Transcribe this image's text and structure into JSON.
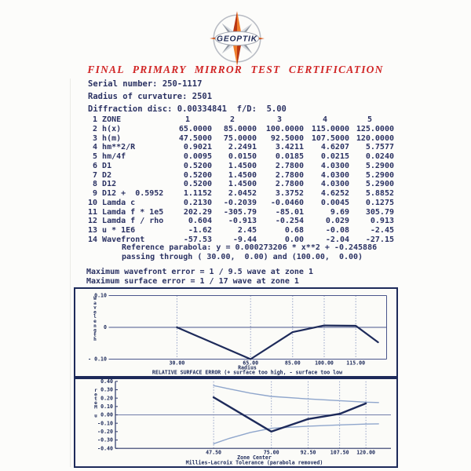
{
  "logo": {
    "text": "GEOPTIK"
  },
  "title": "FINAL PRIMARY MIRROR TEST CERTIFICATION",
  "info": [
    {
      "label": "Serial number:",
      "value": "250-1117"
    },
    {
      "label": "Radius of curvature:",
      "value": "2501"
    },
    {
      "label": "Diffraction disc:",
      "value": "0.00334841",
      "label2": "f/D:",
      "value2": "5.00"
    }
  ],
  "table": {
    "rows": [
      {
        "label": " 1 ZONE",
        "values": [
          "1",
          "2",
          "3",
          "4",
          "5"
        ],
        "header": true
      },
      {
        "label": " 2 h(x)",
        "values": [
          "65.0000",
          "85.0000",
          "100.0000",
          "115.0000",
          "125.0000"
        ]
      },
      {
        "label": " 3 h(m)",
        "values": [
          "47.5000",
          "75.0000",
          "92.5000",
          "107.5000",
          "120.0000"
        ]
      },
      {
        "label": " 4 hm**2/R",
        "values": [
          "0.9021",
          "2.2491",
          "3.4211",
          "4.6207",
          "5.7577"
        ]
      },
      {
        "label": " 5 hm/4f",
        "values": [
          "0.0095",
          "0.0150",
          "0.0185",
          "0.0215",
          "0.0240"
        ]
      },
      {
        "label": " 6 D1",
        "values": [
          "0.5200",
          "1.4500",
          "2.7800",
          "4.0300",
          "5.2900"
        ]
      },
      {
        "label": " 7 D2",
        "values": [
          "0.5200",
          "1.4500",
          "2.7800",
          "4.0300",
          "5.2900"
        ]
      },
      {
        "label": " 8 D12",
        "values": [
          "0.5200",
          "1.4500",
          "2.7800",
          "4.0300",
          "5.2900"
        ]
      },
      {
        "label": " 9 D12 +  0.5952",
        "values": [
          "1.1152",
          "2.0452",
          "3.3752",
          "4.6252",
          "5.8852"
        ]
      },
      {
        "label": "10 Lamda c",
        "values": [
          "0.2130",
          "-0.2039",
          "-0.0460",
          "0.0045",
          "0.1275"
        ]
      },
      {
        "label": "11 Lamda f * 1e5",
        "values": [
          "202.29",
          "-305.79",
          "-85.01",
          "9.69",
          "305.79"
        ]
      },
      {
        "label": "12 Lamda f / rho",
        "values": [
          "0.604",
          "-0.913",
          "-0.254",
          "0.029",
          "0.913"
        ]
      },
      {
        "label": "13 u * 1E6",
        "values": [
          "-1.62",
          "2.45",
          "0.68",
          "-0.08",
          "-2.45"
        ]
      },
      {
        "label": "14 Wavefront",
        "values": [
          "-57.53",
          "-9.44",
          "0.00",
          "-2.04",
          "-27.15"
        ]
      }
    ]
  },
  "notes": {
    "reference_line1": "Reference parabola: y = 0.000273206 * x**2 + -0.245886",
    "reference_line2": "passing through ( 30.00,  0.00) and (100.00,  0.00)",
    "max_wavefront": "Maximum wavefront error = 1 / 9.5 wave at zone 1",
    "max_surface": "Maximum surface error = 1 / 17 wave at zone 1"
  },
  "chart_data": [
    {
      "type": "line",
      "xlabel": "Radius",
      "ylabel": "Wavelength",
      "caption": "RELATIVE SURFACE ERROR (+ surface too high, - surface too low",
      "xticks": [
        "30.00",
        "65.00",
        "85.00",
        "100.00",
        "115.00"
      ],
      "xtick_values": [
        30,
        65,
        85,
        100,
        115
      ],
      "ytick_labels": [
        "0.10",
        "0",
        "- 0.10"
      ],
      "ytick_values": [
        0.1,
        0,
        -0.1
      ],
      "ylim": [
        -0.1,
        0.1
      ],
      "xlim": [
        0,
        133
      ],
      "grid": "vertical-dotted",
      "legend": "none",
      "series": [
        {
          "name": "relative-surface-error",
          "x": [
            30,
            65,
            85,
            100,
            115,
            125.6
          ],
          "y": [
            0.0,
            -0.1,
            -0.015,
            0.006,
            0.005,
            -0.047
          ],
          "color": "#1d2a5a",
          "width": 2.2
        }
      ]
    },
    {
      "type": "line",
      "xlabel": "Zone Center",
      "ylabel": "u Meter",
      "caption": "Millies-Lacroix Tolerance (parabola removed)",
      "xticks": [
        "47.50",
        "75.00",
        "92.50",
        "107.50",
        "120.00"
      ],
      "xtick_values": [
        47.5,
        75,
        92.5,
        107.5,
        120
      ],
      "ytick_labels": [
        "0.40",
        "0.30",
        "0.20",
        "0.10",
        "0.00",
        "-0.10",
        "-0.20",
        "-0.30",
        "-0.40"
      ],
      "ytick_values": [
        0.4,
        0.3,
        0.2,
        0.1,
        0.0,
        -0.1,
        -0.2,
        -0.3,
        -0.4
      ],
      "ylim": [
        -0.4,
        0.4
      ],
      "xlim": [
        0,
        133
      ],
      "grid": "vertical-dotted",
      "legend": "none",
      "series": [
        {
          "name": "tolerance-upper",
          "x": [
            47.5,
            55,
            65,
            75,
            92.5,
            107.5,
            120,
            126
          ],
          "y": [
            0.35,
            0.31,
            0.26,
            0.22,
            0.19,
            0.17,
            0.152,
            0.147
          ],
          "color": "#8fa6cc",
          "width": 1.4
        },
        {
          "name": "tolerance-lower",
          "x": [
            47.5,
            55,
            65,
            75,
            92.5,
            107.5,
            120,
            126
          ],
          "y": [
            -0.345,
            -0.28,
            -0.21,
            -0.16,
            -0.135,
            -0.12,
            -0.11,
            -0.107
          ],
          "color": "#8fa6cc",
          "width": 1.4
        },
        {
          "name": "measured-error",
          "x": [
            47.5,
            75,
            92.5,
            107.5,
            120
          ],
          "y": [
            0.21,
            -0.2,
            -0.05,
            0.012,
            0.137
          ],
          "color": "#1d2a5a",
          "width": 2.4
        }
      ]
    }
  ]
}
